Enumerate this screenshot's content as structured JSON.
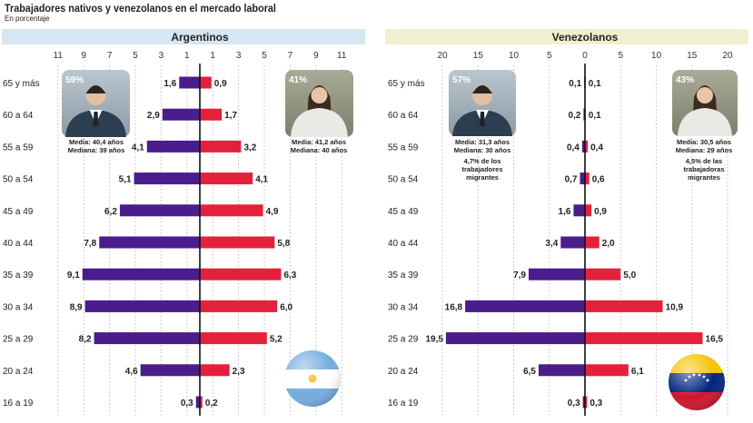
{
  "header": {
    "title": "Trabajadores nativos y venezolanos en el mercado laboral",
    "subtitle": "En porcentaje"
  },
  "colors": {
    "male": "#4b1c8c",
    "female": "#e4213a",
    "arg_header": "#d6e6f2",
    "ven_header": "#f2efcf",
    "axis": "#111111",
    "grid": "#bdbdbd"
  },
  "chart_data": [
    {
      "type": "bar",
      "title": "Argentinos",
      "categories": [
        "65 y más",
        "60 a 64",
        "55 a 59",
        "50 a 54",
        "45 a 49",
        "40 a 44",
        "35 a 39",
        "30 a 34",
        "25 a 29",
        "20 a 24",
        "16 a 19"
      ],
      "category_labels": [
        "65 y más",
        "60 a 64",
        "55 a 59",
        "50 a 54",
        "45 a 49",
        "40 a 44",
        "35 a 39",
        "30 a 34",
        "25 a 29",
        "20 a 24",
        "16 a 19"
      ],
      "series": [
        {
          "values": [
            1.6,
            2.9,
            4.1,
            5.1,
            6.2,
            7.8,
            9.1,
            8.9,
            8.2,
            4.6,
            0.3
          ],
          "labels": [
            "1,6",
            "2,9",
            "4,1",
            "5,1",
            "6,2",
            "7,8",
            "9,1",
            "8,9",
            "8,2",
            "4,6",
            "0,3"
          ]
        },
        {
          "values": [
            0.9,
            1.7,
            3.2,
            4.1,
            4.9,
            5.8,
            6.3,
            6.0,
            5.2,
            2.3,
            0.2
          ],
          "labels": [
            "0,9",
            "1,7",
            "3,2",
            "4,1",
            "4,9",
            "5,8",
            "6,3",
            "6,0",
            "5,2",
            "2,3",
            "0,2"
          ]
        }
      ],
      "xlim": [
        -12,
        12
      ],
      "tick_values": [
        -11,
        -9,
        -7,
        -5,
        -3,
        -1,
        1,
        3,
        5,
        7,
        9,
        11
      ],
      "tick_labels": [
        "11",
        "9",
        "7",
        "5",
        "3",
        "1",
        "1",
        "3",
        "5",
        "7",
        "9",
        "11"
      ],
      "male_card": {
        "pct": "59%",
        "media": "Media: 40,4 años",
        "mediana": "Mediana: 39 años"
      },
      "female_card": {
        "pct": "41%",
        "media": "Media: 41,2 años",
        "mediana": "Mediana: 40 años"
      }
    },
    {
      "type": "bar",
      "title": "Venezolanos",
      "categories": [
        "65 y más",
        "60 a 64",
        "55 a 59",
        "50 a 54",
        "45 a 49",
        "40 a 44",
        "35 a 39",
        "30 a 34",
        "25 a 29",
        "20 a 24",
        "16 a 19"
      ],
      "category_labels": [
        "65 y más",
        "60 a 64",
        "55 a 59",
        "50 a 54",
        "45 a 49",
        "40 a 44",
        "35 a 39",
        "30 a 34",
        "25 a 29",
        "20 a 24",
        "16 a 19"
      ],
      "series": [
        {
          "values": [
            0.1,
            0.2,
            0.4,
            0.7,
            1.6,
            3.4,
            7.9,
            16.8,
            19.5,
            6.5,
            0.3
          ],
          "labels": [
            "0,1",
            "0,2",
            "0,4",
            "0,7",
            "1,6",
            "3,4",
            "7,9",
            "16,8",
            "19,5",
            "6,5",
            "0,3"
          ]
        },
        {
          "values": [
            0.1,
            0.1,
            0.4,
            0.6,
            0.9,
            2.0,
            5.0,
            10.9,
            16.5,
            6.1,
            0.3
          ],
          "labels": [
            "0,1",
            "0,1",
            "0,4",
            "0,6",
            "0,9",
            "2,0",
            "5,0",
            "10,9",
            "16,5",
            "6,1",
            "0,3"
          ]
        }
      ],
      "xlim": [
        -22,
        21
      ],
      "tick_values": [
        -20,
        -15,
        -10,
        -5,
        0,
        5,
        10,
        15,
        20
      ],
      "tick_labels": [
        "20",
        "15",
        "10",
        "5",
        "0",
        "5",
        "10",
        "15",
        "20"
      ],
      "male_card": {
        "pct": "57%",
        "media": "Media: 31,3 años",
        "mediana": "Mediana: 30 años",
        "note1": "4,7% de los",
        "note2": "trabajadores",
        "note3": "migrantes"
      },
      "female_card": {
        "pct": "43%",
        "media": "Media: 30,5 años",
        "mediana": "Mediana: 29 años",
        "note1": "4,5% de las",
        "note2": "trabajadoras",
        "note3": "migrantes"
      }
    }
  ]
}
